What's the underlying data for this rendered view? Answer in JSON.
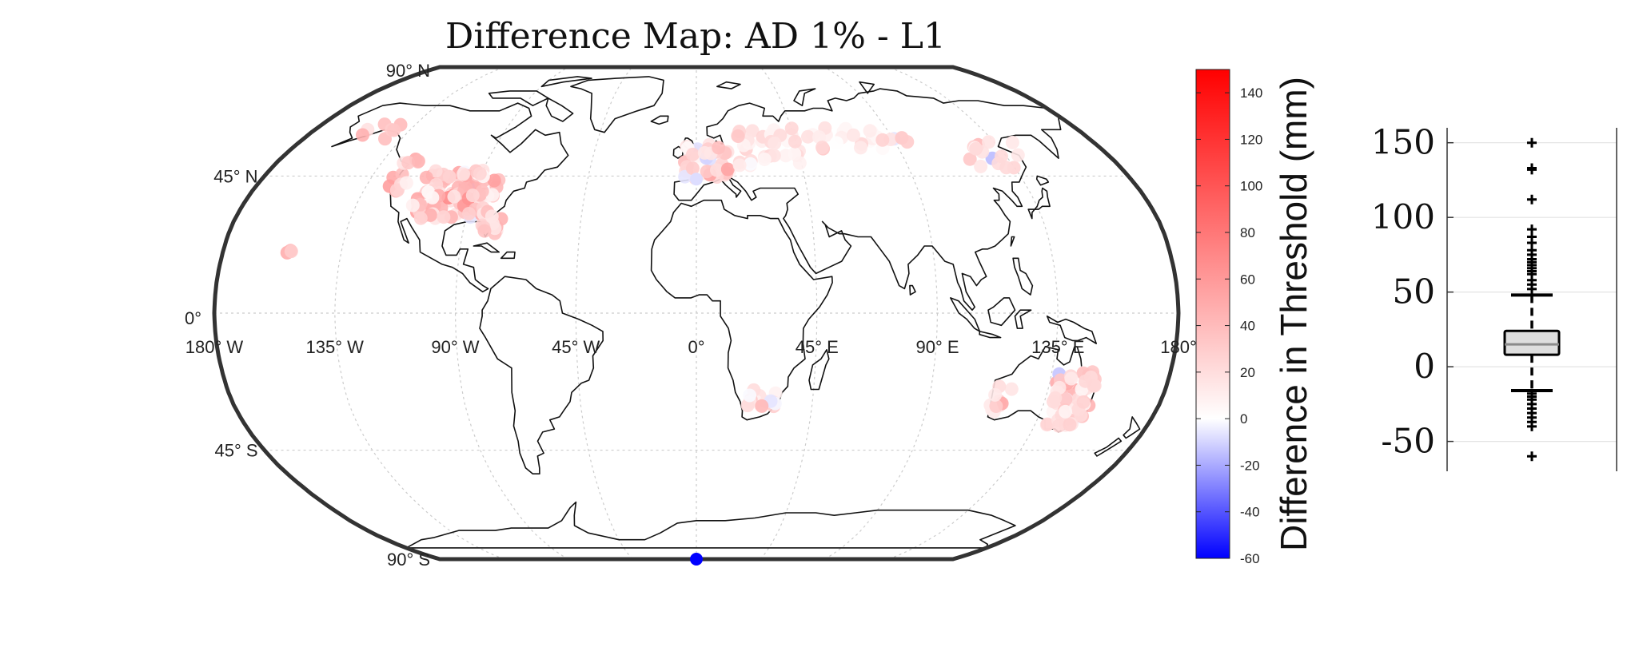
{
  "map": {
    "title": "Difference Map: AD 1% - L1",
    "lat_labels": [
      {
        "lat": 90,
        "text": "90° N"
      },
      {
        "lat": 45,
        "text": "45° N"
      },
      {
        "lat": 0,
        "text": "0°"
      },
      {
        "lat": -45,
        "text": "45° S"
      },
      {
        "lat": -90,
        "text": "90° S"
      }
    ],
    "lon_labels": [
      {
        "lon": -180,
        "text": "180° W"
      },
      {
        "lon": -135,
        "text": "135° W"
      },
      {
        "lon": -90,
        "text": "90° W"
      },
      {
        "lon": -45,
        "text": "45° W"
      },
      {
        "lon": 0,
        "text": "0°"
      },
      {
        "lon": 45,
        "text": "45° E"
      },
      {
        "lon": 90,
        "text": "90° E"
      },
      {
        "lon": 135,
        "text": "135° E"
      },
      {
        "lon": 180,
        "text": "180°"
      }
    ],
    "projection": "robinson",
    "station_clusters": [
      {
        "lon": -97,
        "lat": 39,
        "spread": [
          16,
          8
        ],
        "count": 120,
        "mean": 30,
        "sd": 18
      },
      {
        "lon": -122,
        "lat": 46,
        "spread": [
          4,
          6
        ],
        "count": 14,
        "mean": 35,
        "sd": 15
      },
      {
        "lon": -80,
        "lat": 30,
        "spread": [
          5,
          4
        ],
        "count": 12,
        "mean": 30,
        "sd": 14
      },
      {
        "lon": -150,
        "lat": 60,
        "spread": [
          8,
          3
        ],
        "count": 7,
        "mean": 35,
        "sd": 14
      },
      {
        "lon": -156,
        "lat": 20,
        "spread": [
          2,
          1
        ],
        "count": 3,
        "mean": 40,
        "sd": 8
      },
      {
        "lon": 5,
        "lat": 50,
        "spread": [
          10,
          6
        ],
        "count": 45,
        "mean": 22,
        "sd": 14
      },
      {
        "lon": 32,
        "lat": 55,
        "spread": [
          14,
          7
        ],
        "count": 35,
        "mean": 15,
        "sd": 10
      },
      {
        "lon": 75,
        "lat": 58,
        "spread": [
          24,
          4
        ],
        "count": 25,
        "mean": 15,
        "sd": 10
      },
      {
        "lon": 130,
        "lat": 52,
        "spread": [
          14,
          5
        ],
        "count": 15,
        "mean": 18,
        "sd": 10
      },
      {
        "lon": 25,
        "lat": -28,
        "spread": [
          6,
          3
        ],
        "count": 14,
        "mean": 20,
        "sd": 10
      },
      {
        "lon": 145,
        "lat": -28,
        "spread": [
          8,
          9
        ],
        "count": 70,
        "mean": 22,
        "sd": 14
      },
      {
        "lon": 117,
        "lat": -28,
        "spread": [
          4,
          5
        ],
        "count": 12,
        "mean": 18,
        "sd": 10
      }
    ],
    "special_points": [
      {
        "lon": 0,
        "lat": -90,
        "value": -60
      },
      {
        "lon": 0,
        "lat": 44,
        "value": -8
      }
    ],
    "colors": {
      "high": "#ff0000",
      "mid": "#ffffff",
      "low": "#0000ff",
      "coast": "#111111",
      "frame": "#333333",
      "grid": "#cccccc"
    }
  },
  "colorbar": {
    "label": "Difference in Threshold (mm)",
    "min": -60,
    "max": 150,
    "ticks": [
      140,
      120,
      100,
      80,
      60,
      40,
      20,
      0,
      -20,
      -40,
      -60
    ]
  },
  "boxplot": {
    "ticks": [
      150,
      100,
      50,
      0,
      -50
    ],
    "ylim": [
      -70,
      160
    ],
    "stats": {
      "q1": 8,
      "median": 15,
      "q3": 24,
      "whisker_low": -16,
      "whisker_high": 48
    },
    "outliers": [
      150,
      133,
      132,
      112,
      92,
      87,
      83,
      78,
      75,
      72,
      70,
      68,
      66,
      64,
      62,
      58,
      55,
      52,
      -18,
      -20,
      -22,
      -25,
      -28,
      -31,
      -34,
      -37,
      -40,
      -60
    ]
  }
}
